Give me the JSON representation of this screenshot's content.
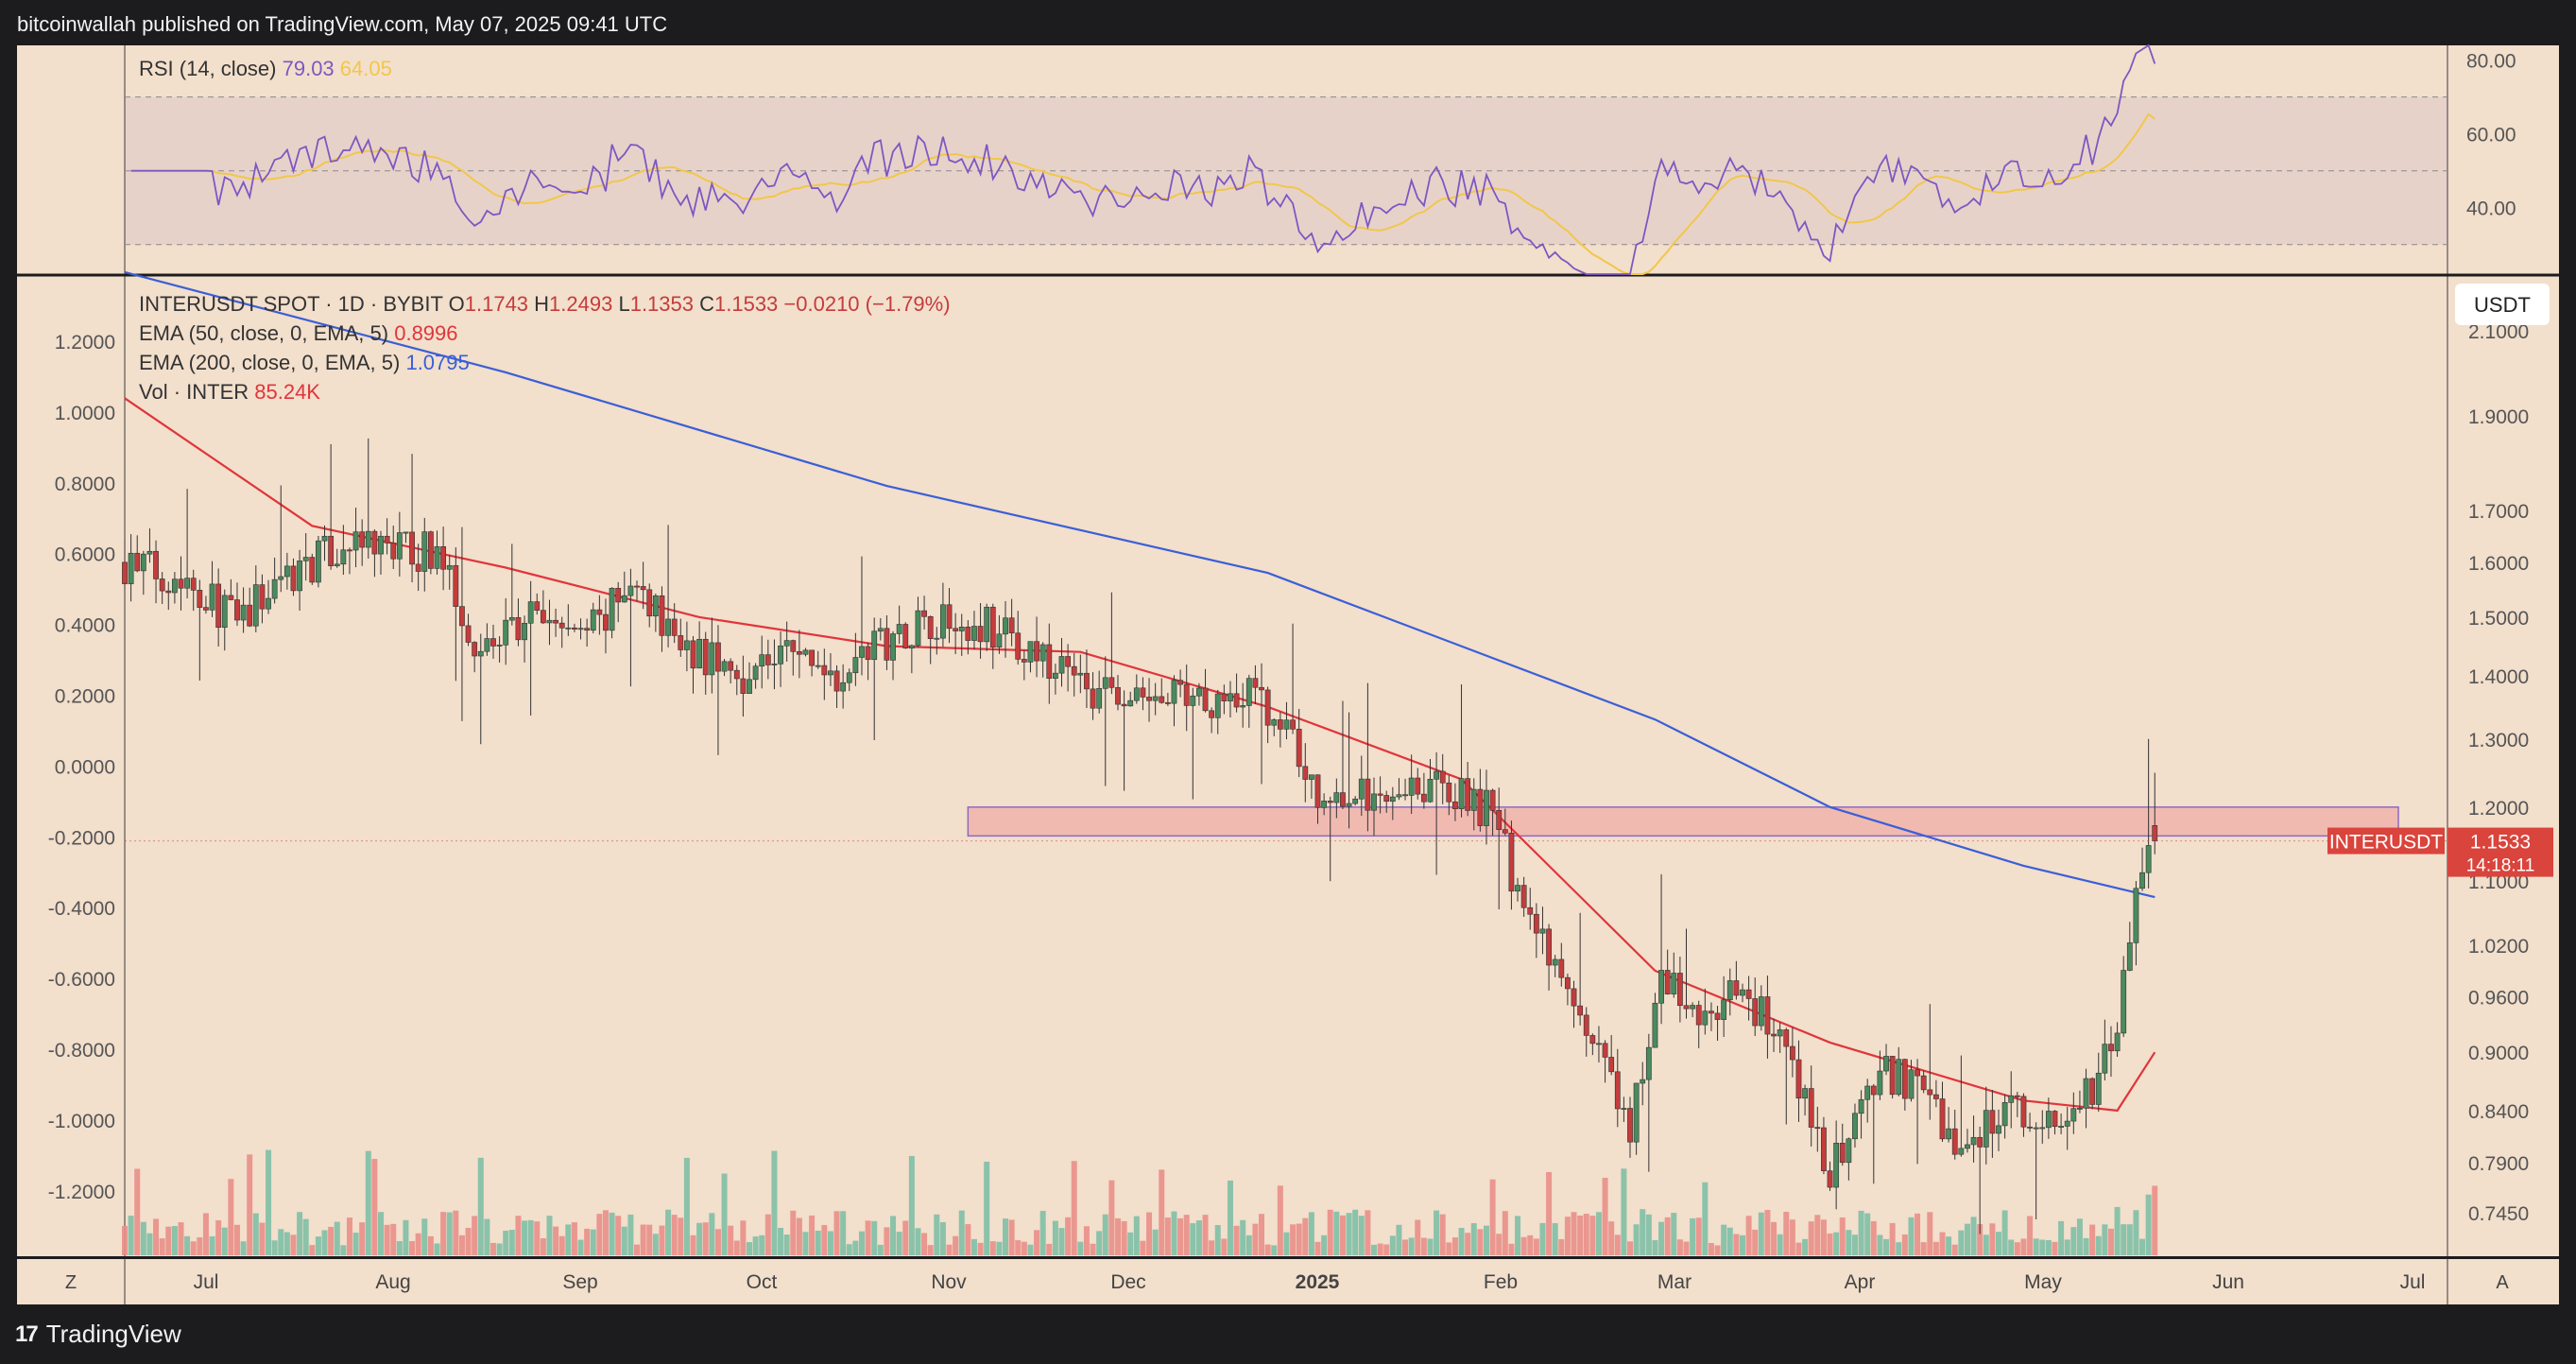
{
  "header": {
    "published_text": "bitcoinwallah published on TradingView.com, May 07, 2025 09:41 UTC"
  },
  "footer": {
    "brand": "TradingView",
    "logo_glyph": "17"
  },
  "toolbar": {
    "left_button": "Z",
    "right_button": "A",
    "currency_button": "USDT"
  },
  "colors": {
    "background": "#f2dfcc",
    "frame": "#1c1c1e",
    "up": "#4a8a5e",
    "down": "#c43c3c",
    "ema50": "#e0353b",
    "ema200": "#3a5fd6",
    "rsi": "#7e57c2",
    "rsi_ma": "#f1c74a",
    "zone_fill": "#f0b4ac",
    "zone_border": "#8e6bbf",
    "label_red": "#d9443c"
  },
  "rsi_panel": {
    "legend_title": "RSI (14, close)",
    "rsi_value": "79.03",
    "rsi_ma_value": "64.05",
    "axis_labels": [
      "80.00",
      "60.00",
      "40.00"
    ],
    "levels": [
      80,
      60,
      40
    ],
    "band": [
      30,
      70
    ],
    "range": [
      22,
      84
    ]
  },
  "main_panel": {
    "legend_symbol": "INTERUSDT SPOT · 1D · BYBIT",
    "ohlc": [
      {
        "k": "O",
        "v": "1.1743"
      },
      {
        "k": "H",
        "v": "1.2493"
      },
      {
        "k": "L",
        "v": "1.1353"
      },
      {
        "k": "C",
        "v": "1.1533"
      }
    ],
    "change": "−0.0210 (−1.79%)",
    "ema50_label": "EMA (50, close, 0, EMA, 5)",
    "ema50_value": "0.8996",
    "ema200_label": "EMA (200, close, 0, EMA, 5)",
    "ema200_value": "1.0795",
    "vol_label": "Vol · INTER",
    "vol_value": "85.24K",
    "symbol_tag": "INTERUSDT",
    "last_price": "1.1533",
    "countdown": "14:18:11",
    "left_axis_labels": [
      "1.2000",
      "1.0000",
      "0.8000",
      "0.6000",
      "0.4000",
      "0.2000",
      "0.0000",
      "-0.2000",
      "-0.4000",
      "-0.6000",
      "-0.8000",
      "-1.0000",
      "-1.2000"
    ],
    "right_axis_labels": [
      "2.1000",
      "1.9000",
      "1.7000",
      "1.6000",
      "1.5000",
      "1.4000",
      "1.3000",
      "1.2000",
      "1.1000",
      "1.0200",
      "0.9600",
      "0.9000",
      "0.8400",
      "0.7900",
      "0.7450"
    ],
    "time_labels": [
      "Jul",
      "Aug",
      "Sep",
      "Oct",
      "Nov",
      "Dec",
      "2025",
      "Feb",
      "Mar",
      "Apr",
      "May",
      "Jun",
      "Jul"
    ]
  },
  "chart_data": {
    "type": "candlestick",
    "symbol": "INTERUSDT",
    "interval": "1D",
    "log_scale": true,
    "price_range": [
      0.72,
      2.25
    ],
    "resistance_zone": {
      "low": 1.16,
      "high": 1.2,
      "from": "2024-10-29",
      "to": "2025-06-15"
    },
    "last_close": 1.1533,
    "anchors": [
      {
        "date": "2024-06-16",
        "price": 1.6
      },
      {
        "date": "2024-06-26",
        "price": 1.57
      },
      {
        "date": "2024-07-04",
        "price": 1.49
      },
      {
        "date": "2024-07-12",
        "price": 1.58
      },
      {
        "date": "2024-07-22",
        "price": 1.63
      },
      {
        "date": "2024-08-05",
        "price": 1.62
      },
      {
        "date": "2024-08-12",
        "price": 1.44
      },
      {
        "date": "2024-08-20",
        "price": 1.5
      },
      {
        "date": "2024-08-28",
        "price": 1.47
      },
      {
        "date": "2024-09-06",
        "price": 1.55
      },
      {
        "date": "2024-09-14",
        "price": 1.45
      },
      {
        "date": "2024-09-22",
        "price": 1.4
      },
      {
        "date": "2024-09-30",
        "price": 1.44
      },
      {
        "date": "2024-10-08",
        "price": 1.41
      },
      {
        "date": "2024-10-14",
        "price": 1.45
      },
      {
        "date": "2024-10-22",
        "price": 1.5
      },
      {
        "date": "2024-11-01",
        "price": 1.49
      },
      {
        "date": "2024-11-10",
        "price": 1.42
      },
      {
        "date": "2024-11-22",
        "price": 1.36
      },
      {
        "date": "2024-11-28",
        "price": 1.36
      },
      {
        "date": "2024-12-05",
        "price": 1.36
      },
      {
        "date": "2024-12-12",
        "price": 1.38
      },
      {
        "date": "2024-12-20",
        "price": 1.3
      },
      {
        "date": "2024-12-24",
        "price": 1.21
      },
      {
        "date": "2025-01-02",
        "price": 1.22
      },
      {
        "date": "2025-01-08",
        "price": 1.24
      },
      {
        "date": "2025-01-14",
        "price": 1.22
      },
      {
        "date": "2025-01-20",
        "price": 1.2
      },
      {
        "date": "2025-01-28",
        "price": 1.03
      },
      {
        "date": "2025-02-05",
        "price": 0.92
      },
      {
        "date": "2025-02-12",
        "price": 0.82
      },
      {
        "date": "2025-02-17",
        "price": 0.98
      },
      {
        "date": "2025-02-24",
        "price": 0.93
      },
      {
        "date": "2025-03-02",
        "price": 0.97
      },
      {
        "date": "2025-03-08",
        "price": 0.91
      },
      {
        "date": "2025-03-16",
        "price": 0.78
      },
      {
        "date": "2025-03-25",
        "price": 0.88
      },
      {
        "date": "2025-04-01",
        "price": 0.85
      },
      {
        "date": "2025-04-06",
        "price": 0.8
      },
      {
        "date": "2025-04-12",
        "price": 0.84
      },
      {
        "date": "2025-04-20",
        "price": 0.83
      },
      {
        "date": "2025-04-25",
        "price": 0.84
      },
      {
        "date": "2025-04-30",
        "price": 0.9
      },
      {
        "date": "2025-05-04",
        "price": 1.07
      },
      {
        "date": "2025-05-06",
        "price": 1.17
      },
      {
        "date": "2025-05-07",
        "price": 1.1533
      }
    ],
    "ema50": [
      {
        "date": "2024-06-16",
        "value": 1.94
      },
      {
        "date": "2024-07-16",
        "value": 1.67
      },
      {
        "date": "2024-08-16",
        "value": 1.59
      },
      {
        "date": "2024-09-16",
        "value": 1.5
      },
      {
        "date": "2024-10-16",
        "value": 1.45
      },
      {
        "date": "2024-11-16",
        "value": 1.44
      },
      {
        "date": "2024-12-16",
        "value": 1.35
      },
      {
        "date": "2025-01-16",
        "value": 1.24
      },
      {
        "date": "2025-02-16",
        "value": 0.99
      },
      {
        "date": "2025-03-16",
        "value": 0.91
      },
      {
        "date": "2025-04-16",
        "value": 0.85
      },
      {
        "date": "2025-05-01",
        "value": 0.84
      },
      {
        "date": "2025-05-07",
        "value": 0.8996
      }
    ],
    "ema200": [
      {
        "date": "2024-06-16",
        "value": 2.25
      },
      {
        "date": "2024-08-16",
        "value": 2.0
      },
      {
        "date": "2024-10-16",
        "value": 1.75
      },
      {
        "date": "2024-12-16",
        "value": 1.58
      },
      {
        "date": "2025-02-16",
        "value": 1.33
      },
      {
        "date": "2025-03-16",
        "value": 1.2
      },
      {
        "date": "2025-04-16",
        "value": 1.12
      },
      {
        "date": "2025-05-07",
        "value": 1.0795
      }
    ],
    "rsi": {
      "last": 79.03,
      "ma_last": 64.05
    },
    "volume_last": "85.24K"
  }
}
